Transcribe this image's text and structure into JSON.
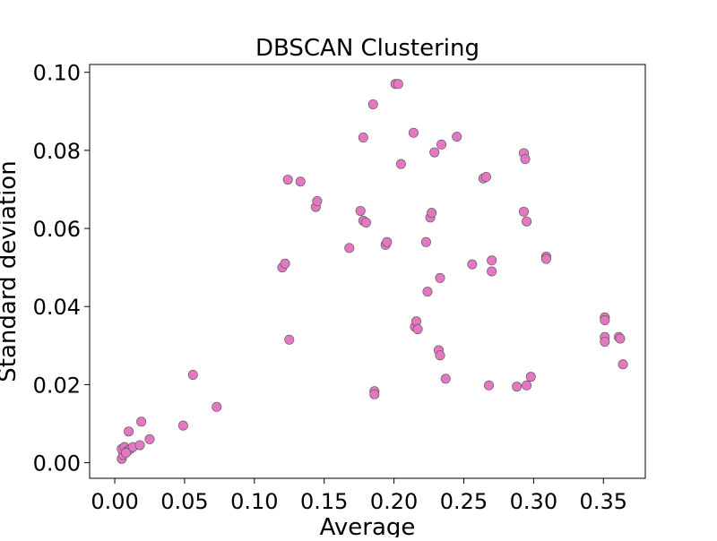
{
  "chart_data": {
    "type": "scatter",
    "title": "DBSCAN Clustering",
    "xlabel": "Average",
    "ylabel": "Standard deviation",
    "xlim": [
      -0.018,
      0.38
    ],
    "ylim": [
      -0.004,
      0.102
    ],
    "xticks": [
      0.0,
      0.05,
      0.1,
      0.15,
      0.2,
      0.25,
      0.3,
      0.35
    ],
    "xtick_labels": [
      "0.00",
      "0.05",
      "0.10",
      "0.15",
      "0.20",
      "0.25",
      "0.30",
      "0.35"
    ],
    "yticks": [
      0.0,
      0.02,
      0.04,
      0.06,
      0.08,
      0.1
    ],
    "ytick_labels": [
      "0.00",
      "0.02",
      "0.04",
      "0.06",
      "0.08",
      "0.10"
    ],
    "grid": false,
    "marker_color": "#e377c2",
    "marker_edge_color": "#555555",
    "series": [
      {
        "points": [
          [
            0.005,
            0.001
          ],
          [
            0.006,
            0.002
          ],
          [
            0.005,
            0.0035
          ],
          [
            0.007,
            0.004
          ],
          [
            0.009,
            0.003
          ],
          [
            0.011,
            0.0035
          ],
          [
            0.013,
            0.004
          ],
          [
            0.008,
            0.0025
          ],
          [
            0.018,
            0.0045
          ],
          [
            0.01,
            0.008
          ],
          [
            0.019,
            0.0105
          ],
          [
            0.025,
            0.006
          ],
          [
            0.049,
            0.0095
          ],
          [
            0.056,
            0.0225
          ],
          [
            0.073,
            0.0143
          ],
          [
            0.12,
            0.05
          ],
          [
            0.122,
            0.051
          ],
          [
            0.124,
            0.0725
          ],
          [
            0.125,
            0.0315
          ],
          [
            0.133,
            0.072
          ],
          [
            0.144,
            0.0655
          ],
          [
            0.145,
            0.067
          ],
          [
            0.168,
            0.055
          ],
          [
            0.176,
            0.0645
          ],
          [
            0.178,
            0.0833
          ],
          [
            0.178,
            0.062
          ],
          [
            0.18,
            0.0615
          ],
          [
            0.185,
            0.0918
          ],
          [
            0.186,
            0.0183
          ],
          [
            0.186,
            0.0175
          ],
          [
            0.194,
            0.0558
          ],
          [
            0.195,
            0.0565
          ],
          [
            0.201,
            0.097
          ],
          [
            0.203,
            0.097
          ],
          [
            0.205,
            0.0765
          ],
          [
            0.214,
            0.0845
          ],
          [
            0.215,
            0.0348
          ],
          [
            0.216,
            0.0362
          ],
          [
            0.217,
            0.0342
          ],
          [
            0.223,
            0.0565
          ],
          [
            0.224,
            0.0438
          ],
          [
            0.226,
            0.0628
          ],
          [
            0.227,
            0.064
          ],
          [
            0.229,
            0.0795
          ],
          [
            0.232,
            0.0288
          ],
          [
            0.233,
            0.0275
          ],
          [
            0.233,
            0.0473
          ],
          [
            0.234,
            0.0815
          ],
          [
            0.237,
            0.0215
          ],
          [
            0.245,
            0.0835
          ],
          [
            0.256,
            0.0508
          ],
          [
            0.264,
            0.0728
          ],
          [
            0.266,
            0.0732
          ],
          [
            0.268,
            0.0198
          ],
          [
            0.27,
            0.0518
          ],
          [
            0.27,
            0.049
          ],
          [
            0.288,
            0.0195
          ],
          [
            0.293,
            0.0643
          ],
          [
            0.293,
            0.0793
          ],
          [
            0.294,
            0.0778
          ],
          [
            0.295,
            0.0618
          ],
          [
            0.295,
            0.0198
          ],
          [
            0.298,
            0.022
          ],
          [
            0.309,
            0.0528
          ],
          [
            0.309,
            0.0522
          ],
          [
            0.351,
            0.0372
          ],
          [
            0.351,
            0.0365
          ],
          [
            0.351,
            0.0322
          ],
          [
            0.351,
            0.031
          ],
          [
            0.361,
            0.0322
          ],
          [
            0.362,
            0.0318
          ],
          [
            0.364,
            0.0252
          ]
        ]
      }
    ]
  }
}
